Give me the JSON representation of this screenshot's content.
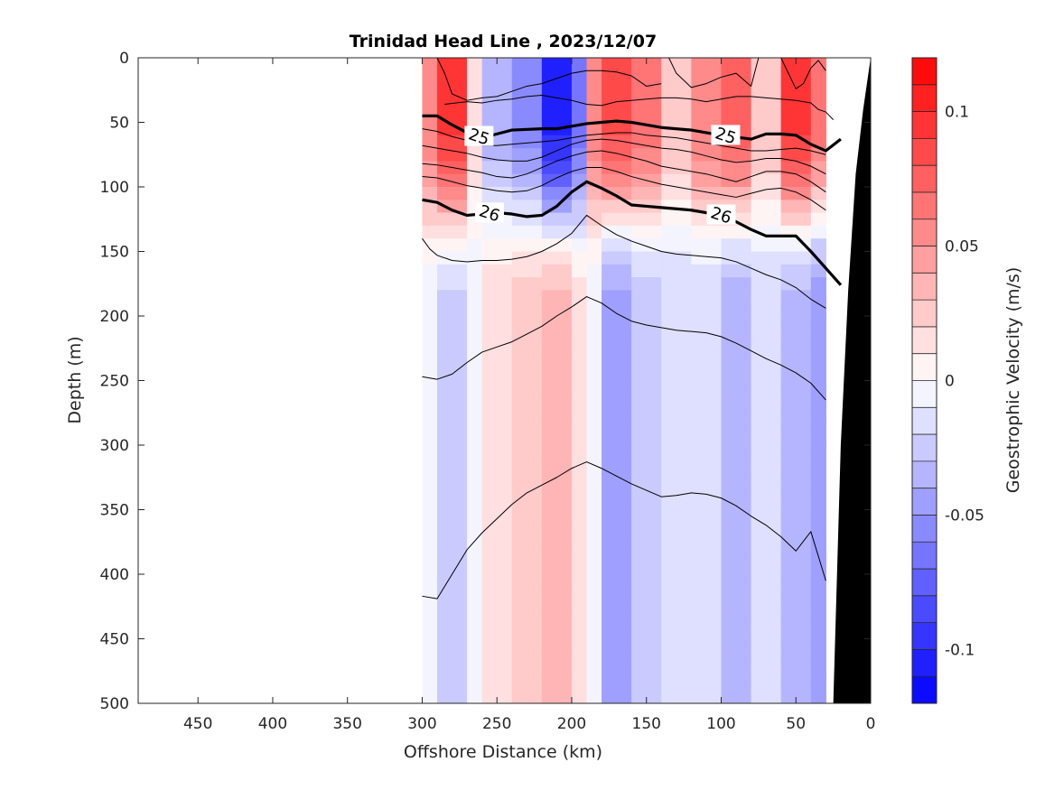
{
  "chart_data": {
    "type": "heatmap",
    "title": "Trinidad Head Line , 2023/12/07",
    "xlabel": "Offshore Distance (km)",
    "ylabel": "Depth (m)",
    "colorbar_label": "Geostrophic Velocity (m/s)",
    "xlim": [
      490,
      0
    ],
    "ylim": [
      0,
      500
    ],
    "clim": [
      -0.12,
      0.12
    ],
    "x_ticks": [
      450,
      400,
      350,
      300,
      250,
      200,
      150,
      100,
      50,
      0
    ],
    "y_ticks": [
      0,
      50,
      100,
      150,
      200,
      250,
      300,
      350,
      400,
      450,
      500
    ],
    "colorbar_ticks": [
      {
        "value": 0.1,
        "label": "0.1"
      },
      {
        "value": 0.05,
        "label": "0.05"
      },
      {
        "value": 0,
        "label": "0"
      },
      {
        "value": -0.05,
        "label": "-0.05"
      },
      {
        "value": -0.1,
        "label": "-0.1"
      }
    ],
    "colors": {
      "positive": "#ff0000",
      "negative": "#0000ff",
      "bathymetry": "#000000"
    },
    "velocity_bands": [
      {
        "x_start": 300,
        "x_end": 290,
        "surface": 0.06,
        "deep": -0.01
      },
      {
        "x_start": 290,
        "x_end": 270,
        "surface": 0.1,
        "deep": -0.03
      },
      {
        "x_start": 270,
        "x_end": 260,
        "surface": 0.02,
        "deep": -0.01
      },
      {
        "x_start": 260,
        "x_end": 240,
        "surface": -0.04,
        "deep": 0.02
      },
      {
        "x_start": 240,
        "x_end": 220,
        "surface": -0.06,
        "deep": 0.03
      },
      {
        "x_start": 220,
        "x_end": 200,
        "surface": -0.11,
        "deep": 0.04
      },
      {
        "x_start": 200,
        "x_end": 190,
        "surface": -0.07,
        "deep": 0.02
      },
      {
        "x_start": 190,
        "x_end": 180,
        "surface": 0.06,
        "deep": -0.01
      },
      {
        "x_start": 180,
        "x_end": 160,
        "surface": 0.09,
        "deep": -0.05
      },
      {
        "x_start": 160,
        "x_end": 140,
        "surface": 0.07,
        "deep": -0.03
      },
      {
        "x_start": 140,
        "x_end": 120,
        "surface": 0.03,
        "deep": -0.02
      },
      {
        "x_start": 120,
        "x_end": 100,
        "surface": 0.06,
        "deep": -0.02
      },
      {
        "x_start": 100,
        "x_end": 80,
        "surface": 0.08,
        "deep": -0.04
      },
      {
        "x_start": 80,
        "x_end": 60,
        "surface": 0.03,
        "deep": -0.02
      },
      {
        "x_start": 60,
        "x_end": 40,
        "surface": 0.1,
        "deep": -0.04
      },
      {
        "x_start": 40,
        "x_end": 30,
        "surface": 0.07,
        "deep": -0.05
      }
    ],
    "density_contours": [
      {
        "level": 25,
        "label": "25",
        "bold": true,
        "x": [
          300,
          290,
          280,
          270,
          260,
          250,
          240,
          220,
          210,
          200,
          190,
          180,
          170,
          160,
          150,
          140,
          120,
          100,
          80,
          70,
          60,
          50,
          40,
          30,
          20
        ],
        "depth": [
          45,
          45,
          52,
          58,
          62,
          59,
          56,
          55,
          55,
          53,
          51,
          50,
          49,
          50,
          52,
          54,
          56,
          60,
          63,
          59,
          59,
          60,
          67,
          72,
          63
        ]
      },
      {
        "level": 26,
        "label": "26",
        "bold": true,
        "x": [
          300,
          290,
          280,
          270,
          260,
          250,
          240,
          230,
          220,
          210,
          200,
          190,
          180,
          170,
          160,
          150,
          140,
          120,
          100,
          90,
          80,
          70,
          60,
          50,
          40,
          30,
          20
        ],
        "depth": [
          110,
          112,
          118,
          122,
          121,
          120,
          121,
          123,
          122,
          115,
          104,
          96,
          101,
          107,
          114,
          115,
          116,
          118,
          122,
          127,
          133,
          138,
          138,
          138,
          150,
          163,
          176
        ]
      },
      {
        "level": 24.8,
        "label": "",
        "bold": false,
        "x": [
          290,
          285,
          280,
          270,
          260,
          250,
          240,
          230,
          220,
          210,
          200,
          190,
          180,
          170,
          160,
          150,
          140
        ],
        "depth": [
          0,
          12,
          28,
          33,
          31,
          30,
          26,
          22,
          20,
          16,
          12,
          10,
          10,
          11,
          14,
          22,
          20
        ]
      },
      {
        "level": 24.9,
        "label": "",
        "bold": false,
        "x": [
          135,
          130,
          120,
          110,
          100,
          90,
          80,
          75
        ],
        "depth": [
          0,
          12,
          23,
          20,
          15,
          12,
          22,
          0
        ]
      },
      {
        "level": 24.95,
        "label": "",
        "bold": false,
        "x": [
          60,
          55,
          50,
          45,
          40,
          35,
          30
        ],
        "depth": [
          0,
          12,
          24,
          20,
          8,
          2,
          10
        ]
      },
      {
        "level": 24.98,
        "label": "",
        "bold": false,
        "x": [
          285,
          270,
          260,
          250,
          240,
          230,
          220,
          210,
          200,
          190,
          180,
          170,
          160,
          150,
          140,
          130,
          120,
          110,
          100,
          90,
          80,
          70,
          60,
          50,
          40,
          35,
          30,
          25
        ],
        "depth": [
          36,
          34,
          35,
          33,
          32,
          30,
          29,
          31,
          33,
          36,
          37,
          34,
          33,
          32,
          31,
          31,
          32,
          34,
          32,
          30,
          30,
          31,
          32,
          33,
          35,
          40,
          42,
          48
        ]
      },
      {
        "level": 25.1,
        "label": "",
        "bold": false,
        "x": [
          300,
          290,
          280,
          270,
          260,
          250,
          240,
          230,
          220,
          210,
          200,
          190,
          180,
          170,
          160,
          150,
          140,
          130,
          120,
          110,
          100,
          90,
          80,
          70,
          60,
          50,
          40,
          30
        ],
        "depth": [
          55,
          57,
          61,
          64,
          68,
          68,
          67,
          66,
          65,
          64,
          62,
          60,
          59,
          58,
          58,
          60,
          61,
          62,
          64,
          66,
          68,
          70,
          72,
          72,
          71,
          70,
          72,
          75
        ]
      },
      {
        "level": 25.3,
        "label": "",
        "bold": false,
        "x": [
          300,
          290,
          280,
          270,
          260,
          250,
          240,
          230,
          220,
          210,
          200,
          190,
          180,
          170,
          160,
          150,
          140,
          130,
          120,
          110,
          100,
          90,
          80,
          70,
          60,
          50,
          40,
          30
        ],
        "depth": [
          68,
          70,
          72,
          74,
          77,
          79,
          80,
          80,
          77,
          72,
          67,
          64,
          63,
          64,
          66,
          68,
          70,
          71,
          73,
          76,
          79,
          81,
          80,
          78,
          78,
          80,
          84,
          90
        ]
      },
      {
        "level": 25.5,
        "label": "",
        "bold": false,
        "x": [
          300,
          290,
          280,
          270,
          260,
          250,
          240,
          230,
          220,
          210,
          200,
          190,
          180,
          170,
          160,
          150,
          140,
          130,
          120,
          110,
          100,
          90,
          80,
          70,
          60,
          50,
          40,
          30
        ],
        "depth": [
          82,
          83,
          85,
          87,
          89,
          92,
          93,
          90,
          85,
          80,
          76,
          73,
          72,
          74,
          77,
          80,
          84,
          86,
          88,
          90,
          93,
          96,
          92,
          88,
          88,
          90,
          96,
          104
        ]
      },
      {
        "level": 25.7,
        "label": "",
        "bold": false,
        "x": [
          300,
          290,
          280,
          270,
          260,
          250,
          240,
          230,
          220,
          210,
          200,
          190,
          180,
          170,
          160,
          150,
          140,
          130,
          120,
          110,
          100,
          90,
          80,
          70,
          60,
          50,
          40,
          30
        ],
        "depth": [
          92,
          93,
          96,
          99,
          101,
          103,
          104,
          103,
          99,
          93,
          88,
          85,
          85,
          88,
          92,
          95,
          98,
          100,
          102,
          104,
          106,
          108,
          105,
          102,
          101,
          104,
          110,
          118
        ]
      },
      {
        "level": 26.2,
        "label": "",
        "bold": false,
        "x": [
          300,
          295,
          290,
          280,
          270,
          260,
          250,
          240,
          230,
          220,
          210,
          200,
          190,
          180,
          170,
          160,
          150,
          140,
          130,
          120,
          110,
          100,
          90,
          80,
          70,
          60,
          50,
          40,
          30
        ],
        "depth": [
          140,
          148,
          153,
          157,
          158,
          157,
          157,
          156,
          154,
          150,
          144,
          136,
          122,
          130,
          137,
          142,
          146,
          150,
          152,
          153,
          154,
          155,
          158,
          163,
          168,
          172,
          178,
          187,
          194
        ]
      },
      {
        "level": 26.4,
        "label": "",
        "bold": false,
        "x": [
          300,
          290,
          280,
          270,
          260,
          250,
          240,
          230,
          220,
          210,
          200,
          190,
          180,
          170,
          160,
          150,
          140,
          130,
          120,
          110,
          100,
          90,
          80,
          70,
          60,
          50,
          40,
          30
        ],
        "depth": [
          247,
          249,
          245,
          236,
          228,
          224,
          220,
          214,
          208,
          200,
          193,
          185,
          190,
          198,
          204,
          207,
          209,
          211,
          212,
          213,
          216,
          221,
          227,
          233,
          238,
          244,
          252,
          265
        ]
      },
      {
        "level": 26.6,
        "label": "",
        "bold": false,
        "x": [
          300,
          290,
          280,
          270,
          260,
          250,
          240,
          230,
          220,
          210,
          200,
          190,
          180,
          170,
          160,
          150,
          140,
          130,
          120,
          110,
          100,
          90,
          80,
          70,
          60,
          50,
          40,
          30
        ],
        "depth": [
          417,
          419,
          400,
          381,
          368,
          357,
          346,
          337,
          331,
          325,
          318,
          313,
          318,
          324,
          330,
          335,
          340,
          339,
          337,
          338,
          341,
          347,
          355,
          362,
          371,
          382,
          367,
          405
        ]
      }
    ],
    "bathymetry": {
      "x": [
        0,
        5,
        10,
        15,
        20,
        25,
        0
      ],
      "depth": [
        0,
        40,
        90,
        180,
        300,
        500,
        500
      ]
    }
  }
}
